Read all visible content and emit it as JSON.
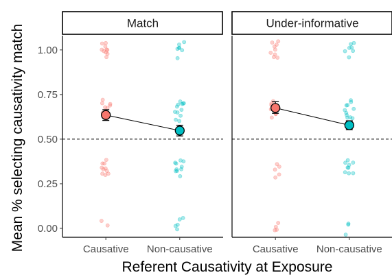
{
  "chart_data": {
    "type": "scatter",
    "ylabel": "Mean % selecting causativity match",
    "xlabel": "Referent Causativity at Exposure",
    "categories": [
      "Causative",
      "Non-causative"
    ],
    "ylim": [
      -0.05,
      1.08
    ],
    "y_ticks": [
      0.0,
      0.25,
      0.5,
      0.75,
      1.0
    ],
    "y_tick_labels": [
      "0.00",
      "0.25",
      "0.50",
      "0.75",
      "1.00"
    ],
    "reference_line": {
      "y": 0.5,
      "style": "dashed"
    },
    "colors": {
      "Causative": "#F8766D",
      "Non-causative": "#00BFC4"
    },
    "legend": "none",
    "grid": false,
    "panels": [
      {
        "title": "Match",
        "means": [
          {
            "category": "Causative",
            "mean": 0.635,
            "ci_low": 0.605,
            "ci_high": 0.665
          },
          {
            "category": "Non-causative",
            "mean": 0.548,
            "ci_low": 0.518,
            "ci_high": 0.578
          }
        ],
        "points": {
          "Causative": [
            1.04,
            1.03,
            1.02,
            1.01,
            1.0,
            1.0,
            0.99,
            0.98,
            0.97,
            0.96,
            0.71,
            0.7,
            0.7,
            0.69,
            0.68,
            0.67,
            0.66,
            0.65,
            0.38,
            0.37,
            0.36,
            0.35,
            0.34,
            0.33,
            0.32,
            0.31,
            0.3,
            0.29,
            0.04,
            0.02
          ],
          "Non-causative": [
            1.04,
            1.03,
            1.02,
            1.01,
            1.0,
            0.99,
            0.96,
            0.71,
            0.71,
            0.7,
            0.7,
            0.69,
            0.68,
            0.67,
            0.66,
            0.65,
            0.63,
            0.62,
            0.61,
            0.38,
            0.37,
            0.37,
            0.36,
            0.35,
            0.34,
            0.33,
            0.32,
            0.31,
            0.3,
            0.05,
            0.04,
            0.02,
            0.01,
            -0.01
          ]
        }
      },
      {
        "title": "Under-informative",
        "means": [
          {
            "category": "Causative",
            "mean": 0.675,
            "ci_low": 0.645,
            "ci_high": 0.71
          },
          {
            "category": "Non-causative",
            "mean": 0.578,
            "ci_low": 0.553,
            "ci_high": 0.603
          }
        ],
        "points": {
          "Causative": [
            1.04,
            1.03,
            1.02,
            1.01,
            1.0,
            0.99,
            0.98,
            0.97,
            0.96,
            0.71,
            0.7,
            0.69,
            0.68,
            0.67,
            0.66,
            0.65,
            0.64,
            0.63,
            0.36,
            0.35,
            0.34,
            0.3,
            0.29,
            0.04,
            0.02,
            0.0,
            -0.02
          ],
          "Non-causative": [
            1.04,
            1.03,
            1.02,
            1.01,
            1.0,
            0.99,
            0.97,
            0.71,
            0.7,
            0.69,
            0.68,
            0.67,
            0.66,
            0.65,
            0.64,
            0.63,
            0.62,
            0.61,
            0.38,
            0.37,
            0.36,
            0.35,
            0.34,
            0.33,
            0.32,
            0.31,
            0.3,
            0.02,
            0.01,
            -0.03
          ]
        }
      }
    ]
  }
}
